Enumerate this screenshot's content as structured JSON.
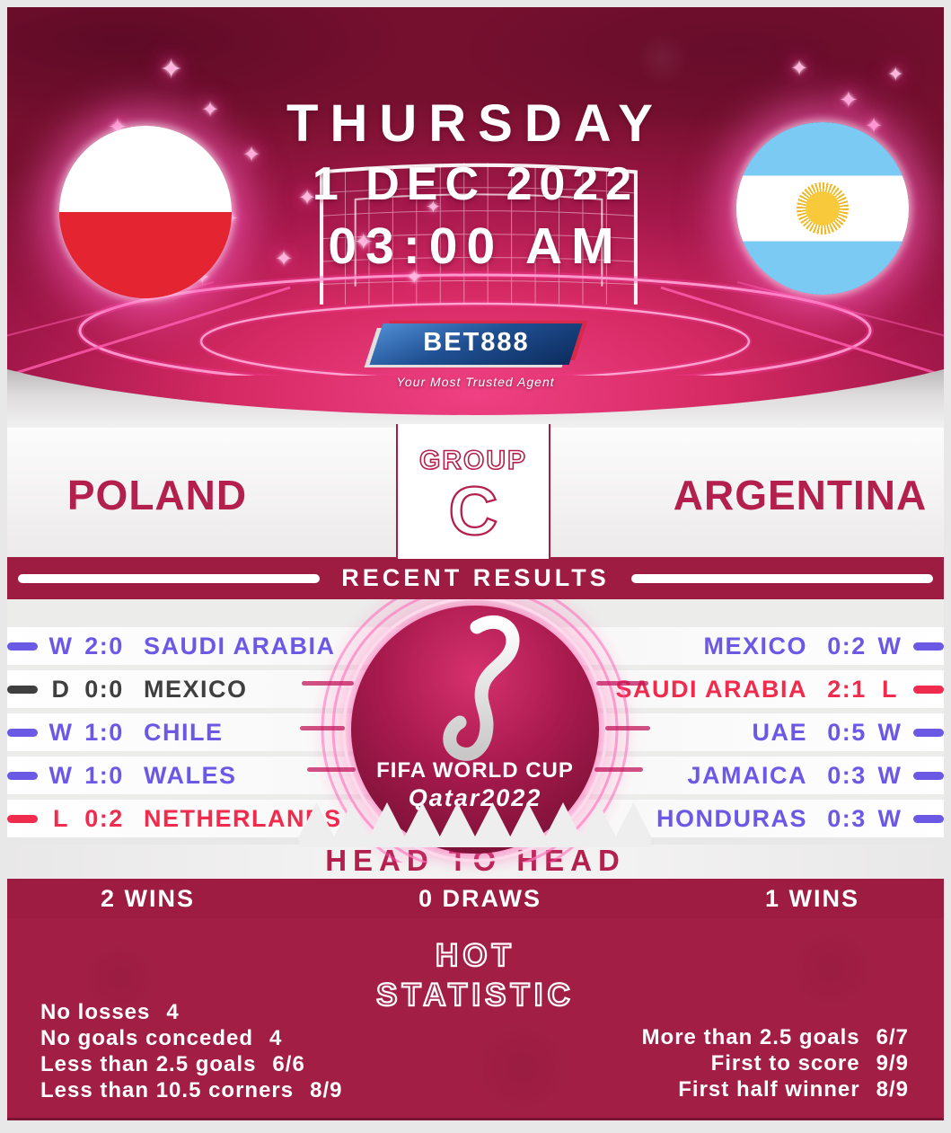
{
  "colors": {
    "band_crimson": "#9e1b41",
    "hot_background": "#a31e45",
    "title_crimson": "#b3204d",
    "win_purple": "#6b59e6",
    "draw_gray": "#3f3f3f",
    "loss_red": "#ef2b4e",
    "frame_gray": "#e9e8e9"
  },
  "header": {
    "day": "THURSDAY",
    "date": "1 DEC 2022",
    "time": "03:00 AM"
  },
  "brand": {
    "name": "BET888",
    "tagline": "Your Most Trusted Agent"
  },
  "match": {
    "home": "POLAND",
    "away": "ARGENTINA",
    "group_label": "GROUP",
    "group_letter": "C"
  },
  "recent": {
    "heading": "RECENT RESULTS",
    "home": [
      {
        "outcome": "W",
        "score": "2:0",
        "team": "SAUDI ARABIA",
        "type": "win"
      },
      {
        "outcome": "D",
        "score": "0:0",
        "team": "MEXICO",
        "type": "draw"
      },
      {
        "outcome": "W",
        "score": "1:0",
        "team": "CHILE",
        "type": "win"
      },
      {
        "outcome": "W",
        "score": "1:0",
        "team": "WALES",
        "type": "win"
      },
      {
        "outcome": "L",
        "score": "0:2",
        "team": "NETHERLANDS",
        "type": "loss"
      }
    ],
    "away": [
      {
        "team": "MEXICO",
        "score": "0:2",
        "outcome": "W",
        "type": "win"
      },
      {
        "team": "SAUDI ARABIA",
        "score": "2:1",
        "outcome": "L",
        "type": "loss"
      },
      {
        "team": "UAE",
        "score": "0:5",
        "outcome": "W",
        "type": "win"
      },
      {
        "team": "JAMAICA",
        "score": "0:3",
        "outcome": "W",
        "type": "win"
      },
      {
        "team": "HONDURAS",
        "score": "0:3",
        "outcome": "W",
        "type": "win"
      }
    ]
  },
  "badge": {
    "title": "FIFA WORLD CUP",
    "year": "Qatar2022"
  },
  "head_to_head": {
    "heading": "HEAD TO HEAD",
    "home_wins": "2 WINS",
    "draws": "0 DRAWS",
    "away_wins": "1 WINS"
  },
  "hot": {
    "title_line1": "HOT",
    "title_line2": "STATISTIC",
    "home_stats": [
      {
        "label": "No losses",
        "value": "4"
      },
      {
        "label": "No goals conceded",
        "value": "4"
      },
      {
        "label": "Less than 2.5 goals",
        "value": "6/6"
      },
      {
        "label": "Less than 10.5 corners",
        "value": "8/9"
      }
    ],
    "away_stats": [
      {
        "label": "More than 2.5 goals",
        "value": "6/7"
      },
      {
        "label": "First to score",
        "value": "9/9"
      },
      {
        "label": "First half winner",
        "value": "8/9"
      }
    ]
  }
}
